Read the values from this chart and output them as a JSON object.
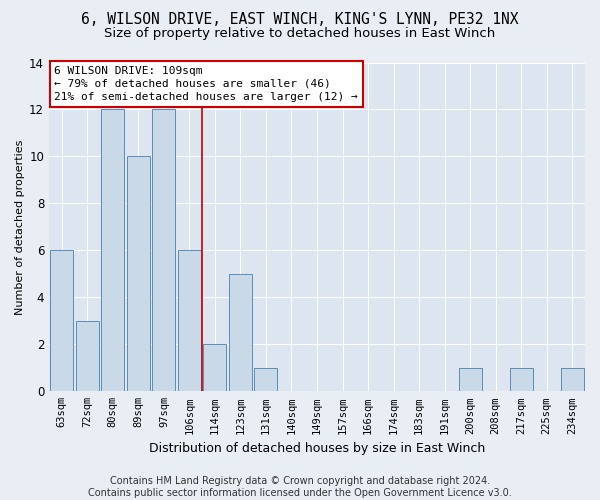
{
  "title1": "6, WILSON DRIVE, EAST WINCH, KING'S LYNN, PE32 1NX",
  "title2": "Size of property relative to detached houses in East Winch",
  "xlabel": "Distribution of detached houses by size in East Winch",
  "ylabel": "Number of detached properties",
  "footnote": "Contains HM Land Registry data © Crown copyright and database right 2024.\nContains public sector information licensed under the Open Government Licence v3.0.",
  "categories": [
    "63sqm",
    "72sqm",
    "80sqm",
    "89sqm",
    "97sqm",
    "106sqm",
    "114sqm",
    "123sqm",
    "131sqm",
    "140sqm",
    "149sqm",
    "157sqm",
    "166sqm",
    "174sqm",
    "183sqm",
    "191sqm",
    "200sqm",
    "208sqm",
    "217sqm",
    "225sqm",
    "234sqm"
  ],
  "values": [
    6,
    3,
    12,
    10,
    12,
    6,
    2,
    5,
    1,
    0,
    0,
    0,
    0,
    0,
    0,
    0,
    1,
    0,
    1,
    0,
    1
  ],
  "bar_color": "#c9d9e8",
  "bar_edge_color": "#5b8db8",
  "reference_line_x": 5.5,
  "reference_line_label": "6 WILSON DRIVE: 109sqm",
  "annotation_line1": "← 79% of detached houses are smaller (46)",
  "annotation_line2": "21% of semi-detached houses are larger (12) →",
  "annotation_box_edge": "#cc0000",
  "reference_line_color": "#cc0000",
  "ylim": [
    0,
    14
  ],
  "yticks": [
    0,
    2,
    4,
    6,
    8,
    10,
    12,
    14
  ],
  "bg_color": "#e8eef4",
  "plot_bg_color": "#dce5f0",
  "title1_fontsize": 10.5,
  "title2_fontsize": 9.5,
  "xlabel_fontsize": 9,
  "ylabel_fontsize": 8,
  "tick_fontsize": 7.5,
  "annotation_fontsize": 8,
  "footnote_fontsize": 7
}
